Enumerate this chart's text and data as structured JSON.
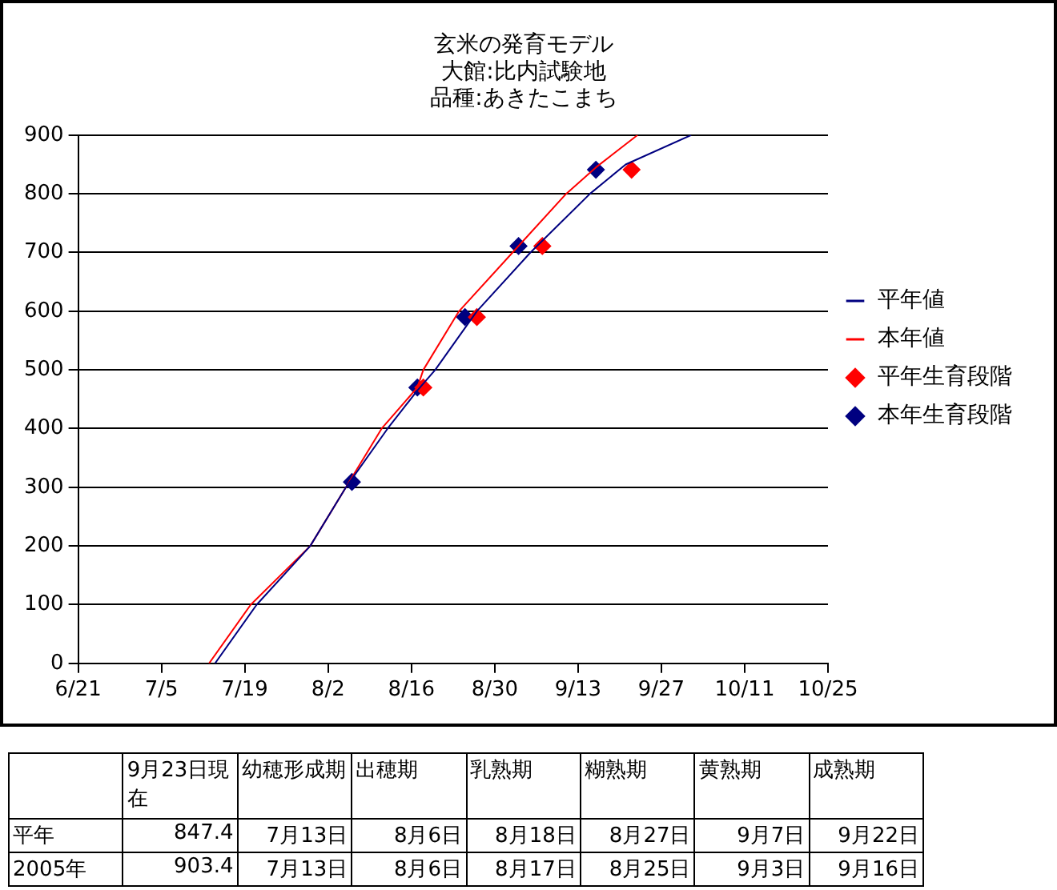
{
  "chart_data": [
    {
      "type": "line",
      "title": "玄米の発育モデル",
      "subtitle": "大館:比内試験地",
      "annotations": [
        "品種:あきたこまち"
      ],
      "xlim": [
        "--06-21",
        "--10-25"
      ],
      "xticks": [
        {
          "value": "--06-21",
          "label": "6/21"
        },
        {
          "value": "--07-05",
          "label": "7/5"
        },
        {
          "value": "--07-19",
          "label": "7/19"
        },
        {
          "value": "--08-02",
          "label": "8/2"
        },
        {
          "value": "--08-16",
          "label": "8/16"
        },
        {
          "value": "--08-30",
          "label": "8/30"
        },
        {
          "value": "--09-13",
          "label": "9/13"
        },
        {
          "value": "--09-27",
          "label": "9/27"
        },
        {
          "value": "--10-11",
          "label": "10/11"
        },
        {
          "value": "--10-25",
          "label": "10/25"
        }
      ],
      "ylim": [
        0,
        900
      ],
      "yticks": [
        0,
        100,
        200,
        300,
        400,
        500,
        600,
        700,
        800,
        900
      ],
      "grid": "y",
      "legend": "right",
      "series": [
        {
          "name": "平年値",
          "type": "line",
          "marker": "none",
          "color": "#000080",
          "x": [
            "--07-14",
            "--07-21",
            "--07-30",
            "--08-05",
            "--08-12",
            "--08-17",
            "--08-20",
            "--08-27",
            "--09-05",
            "--09-15",
            "--09-21",
            "--10-02"
          ],
          "values": [
            0,
            100,
            200,
            300,
            400,
            465,
            500,
            600,
            700,
            800,
            850,
            900
          ]
        },
        {
          "name": "本年値",
          "type": "line",
          "marker": "none",
          "color": "#ff0000",
          "x": [
            "--07-13",
            "--07-20",
            "--07-30",
            "--08-05",
            "--08-11",
            "--08-17",
            "--08-18",
            "--08-24",
            "--09-02",
            "--09-11",
            "--09-16",
            "--09-23"
          ],
          "values": [
            0,
            100,
            200,
            300,
            400,
            470,
            500,
            600,
            700,
            800,
            845,
            900
          ]
        },
        {
          "name": "平年生育段階",
          "type": "scatter",
          "marker": "diamond",
          "color": "#ff0000",
          "x": [
            "--08-18",
            "--08-27",
            "--09-07",
            "--09-22"
          ],
          "values": [
            470,
            590,
            711,
            841
          ]
        },
        {
          "name": "本年生育段階",
          "type": "scatter",
          "marker": "diamond",
          "color": "#000080",
          "x": [
            "--08-06",
            "--08-17",
            "--08-25",
            "--09-03",
            "--09-16"
          ],
          "values": [
            309,
            470,
            590,
            711,
            841
          ]
        }
      ]
    },
    {
      "type": "other",
      "categories": [
        null,
        "9月23日現在",
        "幼穂形成期",
        "出穂期",
        "乳熟期",
        "糊熟期",
        "黄熟期",
        "成熟期"
      ],
      "y_categories": [
        "平年",
        "2005年"
      ],
      "cell_labels": [
        [
          "847.4",
          "7月13日",
          "8月6日",
          "8月18日",
          "8月27日",
          "9月7日",
          "9月22日"
        ],
        [
          "903.4",
          "7月13日",
          "8月6日",
          "8月17日",
          "8月25日",
          "9月3日",
          "9月16日"
        ]
      ]
    }
  ]
}
